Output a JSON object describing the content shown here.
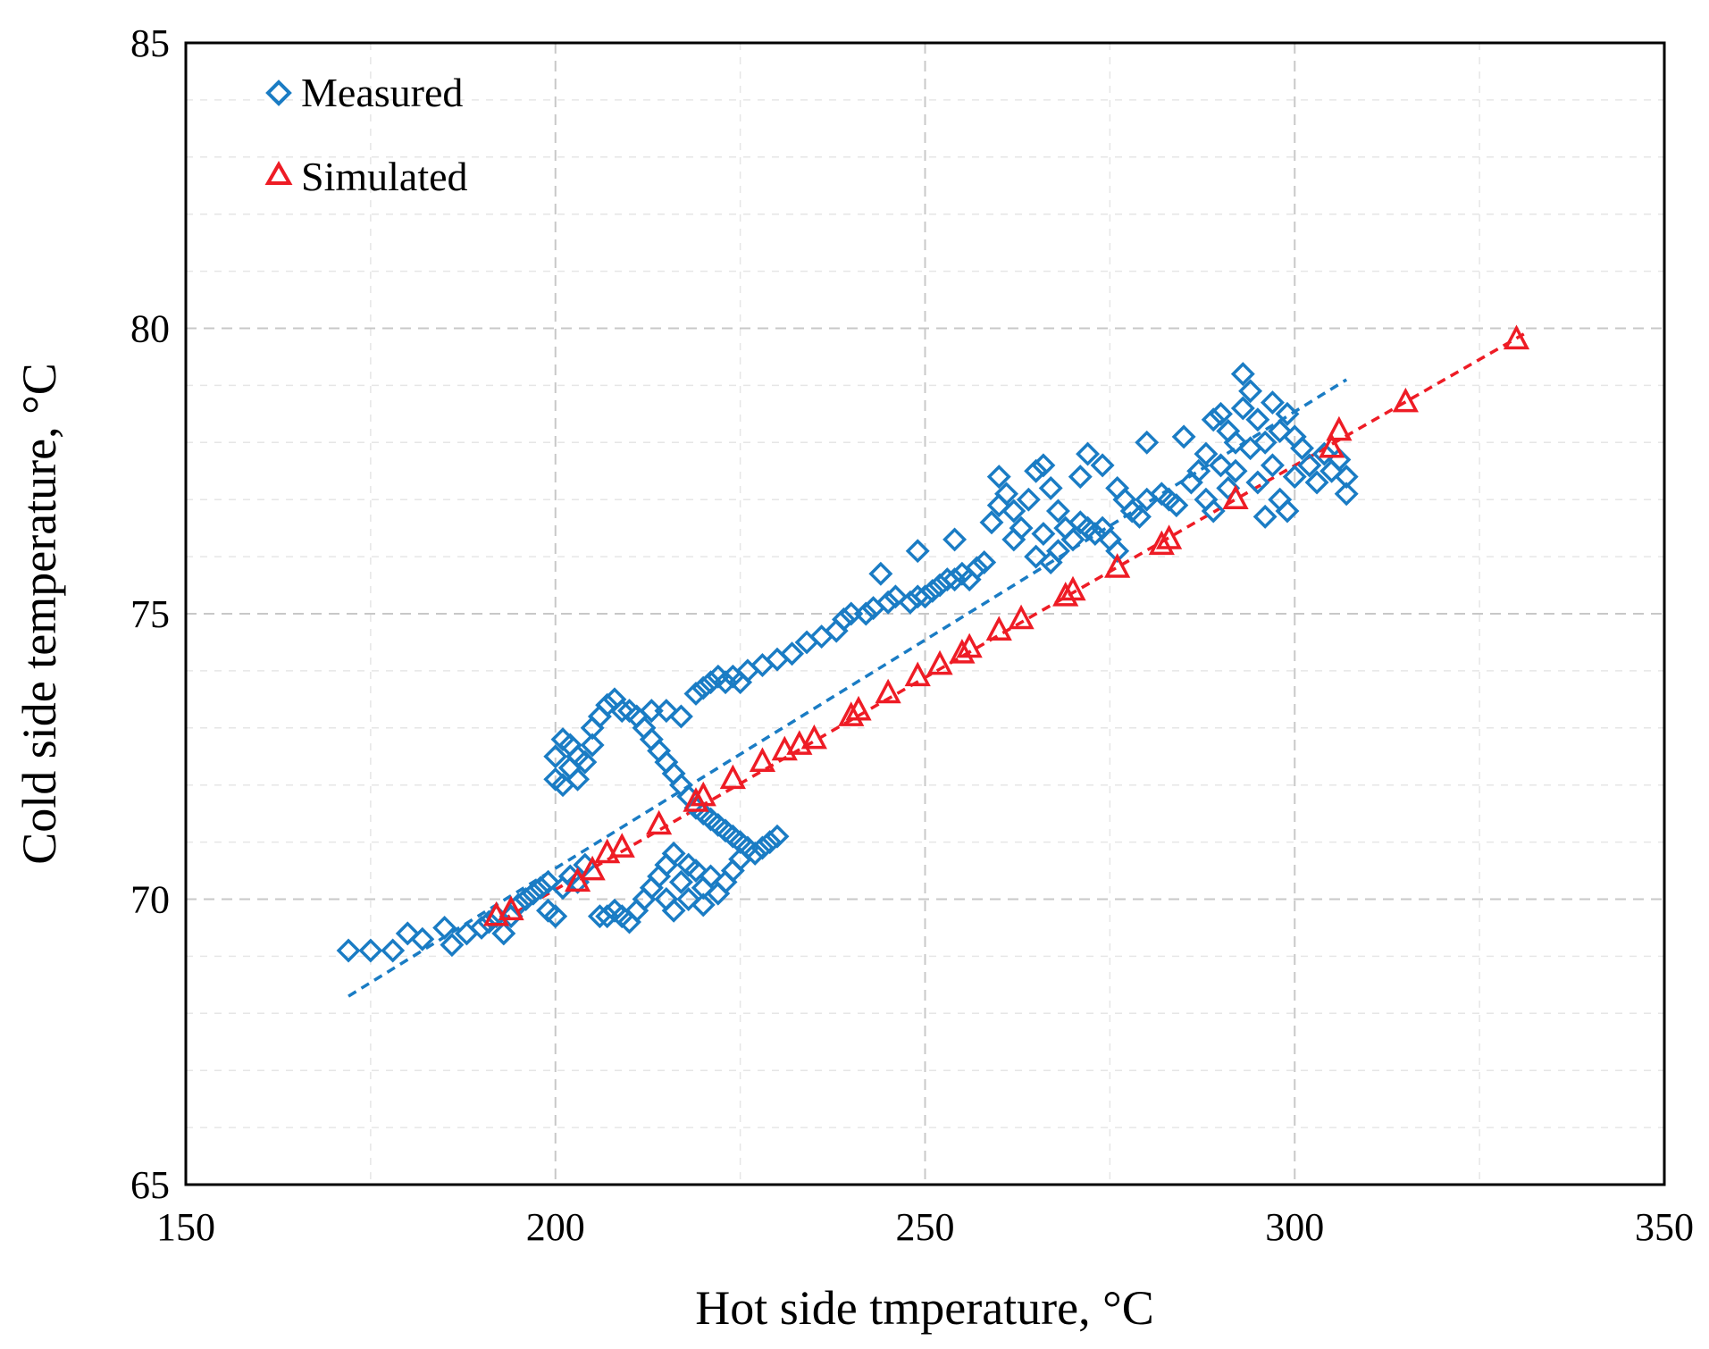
{
  "chart_data": {
    "type": "scatter",
    "title": "",
    "xlabel": "Hot side tmperature, °C",
    "ylabel": "Cold side temperature, °C",
    "xlim": [
      150,
      350
    ],
    "ylim": [
      65,
      85
    ],
    "x_ticks": [
      150,
      200,
      250,
      300,
      350
    ],
    "y_ticks": [
      65,
      70,
      75,
      80,
      85
    ],
    "x_tick_labels": [
      "150",
      "200",
      "250",
      "300",
      "350"
    ],
    "y_tick_labels": [
      "65",
      "70",
      "75",
      "80",
      "85"
    ],
    "grid": true,
    "legend_position": "top-left",
    "series": [
      {
        "name": "Measured",
        "marker": "diamond",
        "color": "#1a7cc4",
        "trendline": {
          "x": [
            172,
            307
          ],
          "y": [
            68.3,
            79.1
          ]
        },
        "points": [
          [
            172,
            69.1
          ],
          [
            175,
            69.1
          ],
          [
            178,
            69.1
          ],
          [
            180,
            69.4
          ],
          [
            182,
            69.3
          ],
          [
            185,
            69.5
          ],
          [
            186,
            69.2
          ],
          [
            188,
            69.4
          ],
          [
            190,
            69.5
          ],
          [
            191,
            69.6
          ],
          [
            192,
            69.7
          ],
          [
            193,
            69.4
          ],
          [
            194,
            69.7
          ],
          [
            195,
            69.9
          ],
          [
            196,
            70.0
          ],
          [
            197,
            70.1
          ],
          [
            198,
            70.2
          ],
          [
            199,
            69.8
          ],
          [
            199,
            70.3
          ],
          [
            200,
            69.7
          ],
          [
            201,
            70.2
          ],
          [
            202,
            70.4
          ],
          [
            203,
            70.3
          ],
          [
            204,
            70.6
          ],
          [
            200,
            72.1
          ],
          [
            200,
            72.5
          ],
          [
            201,
            72.0
          ],
          [
            201,
            72.8
          ],
          [
            202,
            72.3
          ],
          [
            202,
            72.7
          ],
          [
            203,
            72.1
          ],
          [
            203,
            72.5
          ],
          [
            204,
            72.4
          ],
          [
            205,
            72.7
          ],
          [
            205,
            73.0
          ],
          [
            206,
            73.2
          ],
          [
            207,
            73.4
          ],
          [
            208,
            73.5
          ],
          [
            209,
            73.3
          ],
          [
            210,
            73.3
          ],
          [
            211,
            73.2
          ],
          [
            212,
            73.0
          ],
          [
            213,
            72.8
          ],
          [
            214,
            72.6
          ],
          [
            215,
            72.4
          ],
          [
            216,
            72.2
          ],
          [
            217,
            72.0
          ],
          [
            218,
            71.8
          ],
          [
            219,
            71.6
          ],
          [
            220,
            71.5
          ],
          [
            221,
            71.4
          ],
          [
            222,
            71.3
          ],
          [
            223,
            71.2
          ],
          [
            224,
            71.1
          ],
          [
            225,
            71.0
          ],
          [
            226,
            70.9
          ],
          [
            227,
            70.8
          ],
          [
            228,
            70.9
          ],
          [
            229,
            71.0
          ],
          [
            230,
            71.1
          ],
          [
            206,
            69.7
          ],
          [
            207,
            69.7
          ],
          [
            208,
            69.8
          ],
          [
            209,
            69.7
          ],
          [
            210,
            69.6
          ],
          [
            211,
            69.8
          ],
          [
            212,
            70.0
          ],
          [
            213,
            70.2
          ],
          [
            214,
            70.4
          ],
          [
            215,
            70.6
          ],
          [
            215,
            70.0
          ],
          [
            216,
            70.8
          ],
          [
            216,
            69.8
          ],
          [
            217,
            70.3
          ],
          [
            218,
            70.6
          ],
          [
            218,
            70.0
          ],
          [
            219,
            70.5
          ],
          [
            220,
            70.2
          ],
          [
            220,
            69.9
          ],
          [
            221,
            70.4
          ],
          [
            222,
            70.1
          ],
          [
            223,
            70.3
          ],
          [
            224,
            70.5
          ],
          [
            225,
            70.7
          ],
          [
            213,
            73.3
          ],
          [
            215,
            73.3
          ],
          [
            217,
            73.2
          ],
          [
            219,
            73.6
          ],
          [
            220,
            73.7
          ],
          [
            221,
            73.8
          ],
          [
            222,
            73.9
          ],
          [
            223,
            73.8
          ],
          [
            224,
            73.9
          ],
          [
            225,
            73.8
          ],
          [
            226,
            74.0
          ],
          [
            228,
            74.1
          ],
          [
            230,
            74.2
          ],
          [
            232,
            74.3
          ],
          [
            234,
            74.5
          ],
          [
            236,
            74.6
          ],
          [
            238,
            74.7
          ],
          [
            239,
            74.9
          ],
          [
            240,
            75.0
          ],
          [
            242,
            75.0
          ],
          [
            243,
            75.1
          ],
          [
            245,
            75.2
          ],
          [
            246,
            75.3
          ],
          [
            248,
            75.2
          ],
          [
            249,
            75.3
          ],
          [
            250,
            75.3
          ],
          [
            251,
            75.4
          ],
          [
            252,
            75.5
          ],
          [
            253,
            75.6
          ],
          [
            254,
            75.6
          ],
          [
            255,
            75.7
          ],
          [
            256,
            75.6
          ],
          [
            257,
            75.8
          ],
          [
            258,
            75.9
          ],
          [
            244,
            75.7
          ],
          [
            249,
            76.1
          ],
          [
            254,
            76.3
          ],
          [
            259,
            76.6
          ],
          [
            260,
            76.9
          ],
          [
            260,
            77.4
          ],
          [
            261,
            77.1
          ],
          [
            262,
            76.8
          ],
          [
            262,
            76.3
          ],
          [
            263,
            76.5
          ],
          [
            264,
            77.0
          ],
          [
            265,
            77.5
          ],
          [
            265,
            76.0
          ],
          [
            266,
            77.6
          ],
          [
            266,
            76.4
          ],
          [
            267,
            77.2
          ],
          [
            267,
            75.9
          ],
          [
            268,
            76.8
          ],
          [
            268,
            76.1
          ],
          [
            269,
            76.5
          ],
          [
            270,
            76.3
          ],
          [
            271,
            76.6
          ],
          [
            272,
            76.5
          ],
          [
            273,
            76.4
          ],
          [
            274,
            76.5
          ],
          [
            275,
            76.3
          ],
          [
            276,
            76.1
          ],
          [
            271,
            77.4
          ],
          [
            272,
            77.8
          ],
          [
            274,
            77.6
          ],
          [
            276,
            77.2
          ],
          [
            277,
            77.0
          ],
          [
            278,
            76.8
          ],
          [
            279,
            76.7
          ],
          [
            280,
            77.0
          ],
          [
            280,
            78.0
          ],
          [
            282,
            77.1
          ],
          [
            283,
            77.0
          ],
          [
            284,
            76.9
          ],
          [
            285,
            78.1
          ],
          [
            286,
            77.3
          ],
          [
            287,
            77.5
          ],
          [
            288,
            77.8
          ],
          [
            288,
            77.0
          ],
          [
            289,
            78.4
          ],
          [
            289,
            76.8
          ],
          [
            290,
            78.5
          ],
          [
            290,
            77.6
          ],
          [
            291,
            78.2
          ],
          [
            291,
            77.2
          ],
          [
            292,
            78.0
          ],
          [
            292,
            77.5
          ],
          [
            293,
            79.2
          ],
          [
            293,
            78.6
          ],
          [
            294,
            78.9
          ],
          [
            294,
            77.9
          ],
          [
            295,
            78.4
          ],
          [
            295,
            77.3
          ],
          [
            296,
            78.0
          ],
          [
            296,
            76.7
          ],
          [
            297,
            78.7
          ],
          [
            297,
            77.6
          ],
          [
            298,
            78.2
          ],
          [
            298,
            77.0
          ],
          [
            299,
            78.5
          ],
          [
            299,
            76.8
          ],
          [
            300,
            78.1
          ],
          [
            300,
            77.4
          ],
          [
            301,
            77.9
          ],
          [
            302,
            77.6
          ],
          [
            303,
            77.3
          ],
          [
            304,
            77.8
          ],
          [
            305,
            77.5
          ],
          [
            306,
            77.7
          ],
          [
            307,
            77.4
          ],
          [
            307,
            77.1
          ]
        ]
      },
      {
        "name": "Simulated",
        "marker": "triangle",
        "color": "#ee1c25",
        "trendline": {
          "x": [
            191,
            331
          ],
          "y": [
            69.5,
            79.9
          ]
        },
        "points": [
          [
            192,
            69.7
          ],
          [
            194,
            69.8
          ],
          [
            203,
            70.3
          ],
          [
            205,
            70.5
          ],
          [
            207,
            70.8
          ],
          [
            209,
            70.9
          ],
          [
            214,
            71.3
          ],
          [
            219,
            71.7
          ],
          [
            220,
            71.8
          ],
          [
            224,
            72.1
          ],
          [
            228,
            72.4
          ],
          [
            231,
            72.6
          ],
          [
            233,
            72.7
          ],
          [
            235,
            72.8
          ],
          [
            240,
            73.2
          ],
          [
            241,
            73.3
          ],
          [
            245,
            73.6
          ],
          [
            249,
            73.9
          ],
          [
            252,
            74.1
          ],
          [
            255,
            74.3
          ],
          [
            256,
            74.4
          ],
          [
            260,
            74.7
          ],
          [
            263,
            74.9
          ],
          [
            269,
            75.3
          ],
          [
            270,
            75.4
          ],
          [
            276,
            75.8
          ],
          [
            282,
            76.2
          ],
          [
            283,
            76.3
          ],
          [
            292,
            77.0
          ],
          [
            305,
            77.9
          ],
          [
            306,
            78.2
          ],
          [
            315,
            78.7
          ],
          [
            330,
            79.8
          ]
        ]
      }
    ]
  }
}
